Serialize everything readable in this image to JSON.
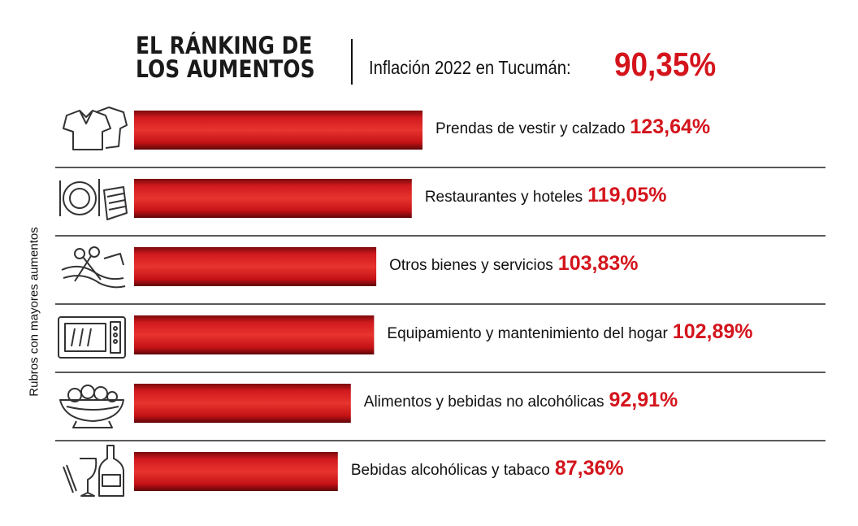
{
  "title": {
    "line1": "EL RÁNKING DE",
    "line2": "LOS AUMENTOS"
  },
  "inflation": {
    "label": "Inflación 2022 en Tucumán:",
    "value": "90,35%"
  },
  "colors": {
    "bar": "#c8141a",
    "bar_dark": "#6e0a0c",
    "value_text": "#d4141c",
    "rule": "#222222"
  },
  "chart_data": {
    "type": "bar",
    "orientation": "horizontal",
    "ylabel": "Rubros con mayores aumentos",
    "categories": [
      "Prendas de vestir y calzado",
      "Restaurantes y hoteles",
      "Otros bienes y servicios",
      "Equipamiento y mantenimiento del hogar",
      "Alimentos y bebidas no alcohólicas",
      "Bebidas alcohólicas y tabaco"
    ],
    "values": [
      123.64,
      119.05,
      103.83,
      102.89,
      92.91,
      87.36
    ],
    "value_labels": [
      "123,64%",
      "119,05%",
      "103,83%",
      "102,89%",
      "92,91%",
      "87,36%"
    ],
    "icons": [
      "clothing-icon",
      "restaurant-icon",
      "scissors-icon",
      "microwave-icon",
      "food-bowl-icon",
      "bottle-glass-icon"
    ]
  }
}
